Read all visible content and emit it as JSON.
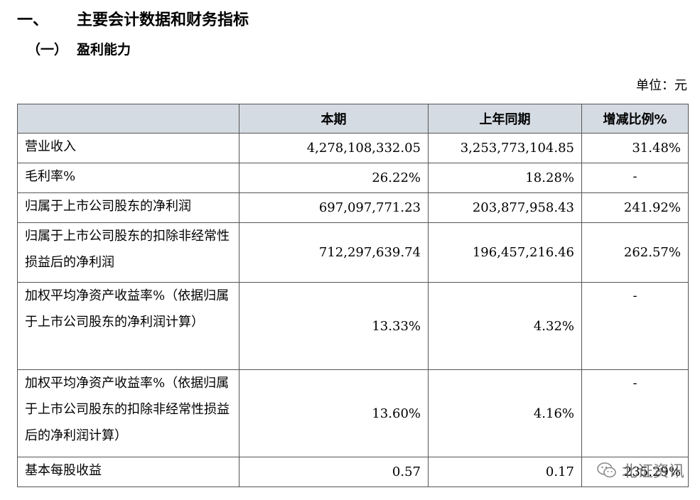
{
  "heading1": {
    "num": "一、",
    "text": "主要会计数据和财务指标"
  },
  "heading2": {
    "num": "（一）",
    "text": "盈利能力"
  },
  "unit": "单位：元",
  "table": {
    "headers": [
      "",
      "本期",
      "上年同期",
      "增减比例%"
    ],
    "rows": [
      {
        "label": "营业收入",
        "current": "4,278,108,332.05",
        "prior": "3,253,773,104.85",
        "change": "31.48%"
      },
      {
        "label": "毛利率%",
        "current": "26.22%",
        "prior": "18.28%",
        "change": "-"
      },
      {
        "label": "归属于上市公司股东的净利润",
        "current": "697,097,771.23",
        "prior": "203,877,958.43",
        "change": "241.92%"
      },
      {
        "label": "归属于上市公司股东的扣除非经常性损益后的净利润",
        "current": "712,297,639.74",
        "prior": "196,457,216.46",
        "change": "262.57%"
      },
      {
        "label": "加权平均净资产收益率%（依据归属于上市公司股东的净利润计算）",
        "current": "13.33%",
        "prior": "4.32%",
        "change": "-"
      },
      {
        "label": "加权平均净资产收益率%（依据归属于上市公司股东的扣除非经常性损益后的净利润计算）",
        "current": "13.60%",
        "prior": "4.16%",
        "change": "-"
      },
      {
        "label": "基本每股收益",
        "current": "0.57",
        "prior": "0.17",
        "change": "235.29%"
      }
    ]
  },
  "watermark": {
    "text": "北证资讯",
    "icon": "wechat-icon"
  }
}
